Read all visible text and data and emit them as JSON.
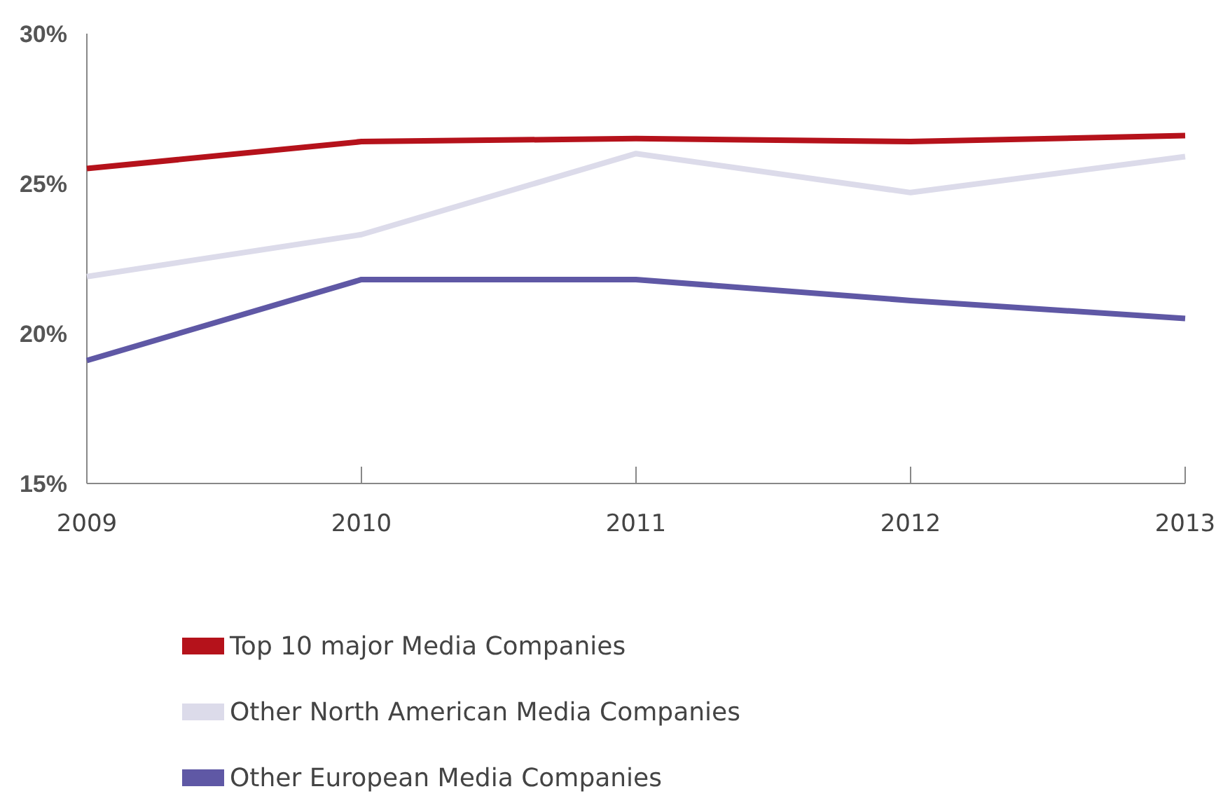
{
  "chart_data": {
    "type": "line",
    "x": [
      2009,
      2010,
      2011,
      2012,
      2013
    ],
    "series": [
      {
        "name": "Top 10 major Media Companies",
        "color": "#b5121b",
        "values": [
          25.5,
          26.4,
          26.5,
          26.4,
          26.6
        ]
      },
      {
        "name": "Other North American Media Companies",
        "color": "#dcdbea",
        "values": [
          21.9,
          23.3,
          26.0,
          24.7,
          25.9
        ]
      },
      {
        "name": "Other European Media Companies",
        "color": "#5f58a5",
        "values": [
          19.1,
          21.8,
          21.8,
          21.1,
          20.5
        ]
      }
    ],
    "xlim": [
      2009,
      2013
    ],
    "xticks": [
      2009,
      2010,
      2011,
      2012,
      2013
    ],
    "ylim": [
      15,
      30
    ],
    "yticks": [
      {
        "value": 15,
        "label": "15%"
      },
      {
        "value": 20,
        "label": "20%"
      },
      {
        "value": 25,
        "label": "25%"
      },
      {
        "value": 30,
        "label": "30%"
      }
    ],
    "grid": false,
    "legend": "bottom left",
    "marker": "none",
    "line_style": "solid"
  }
}
